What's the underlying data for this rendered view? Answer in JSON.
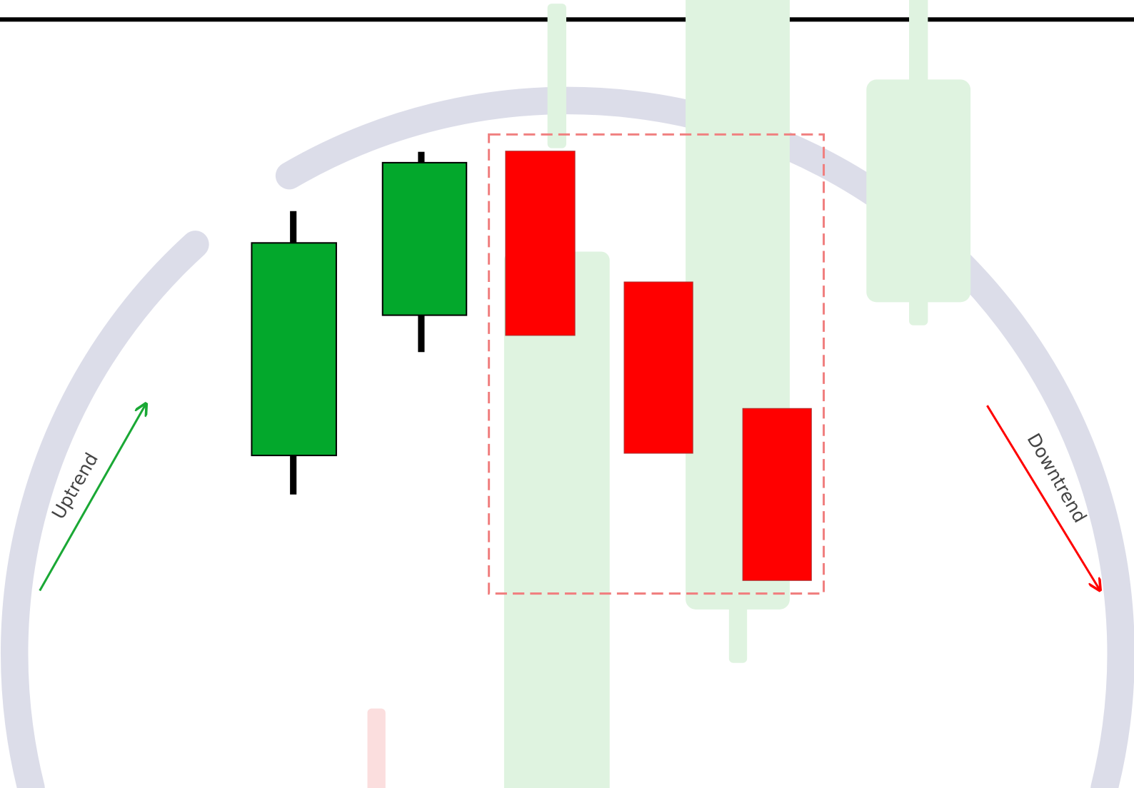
{
  "labels": {
    "uptrend": "Uptrend",
    "downtrend": "Downtrend"
  }
}
